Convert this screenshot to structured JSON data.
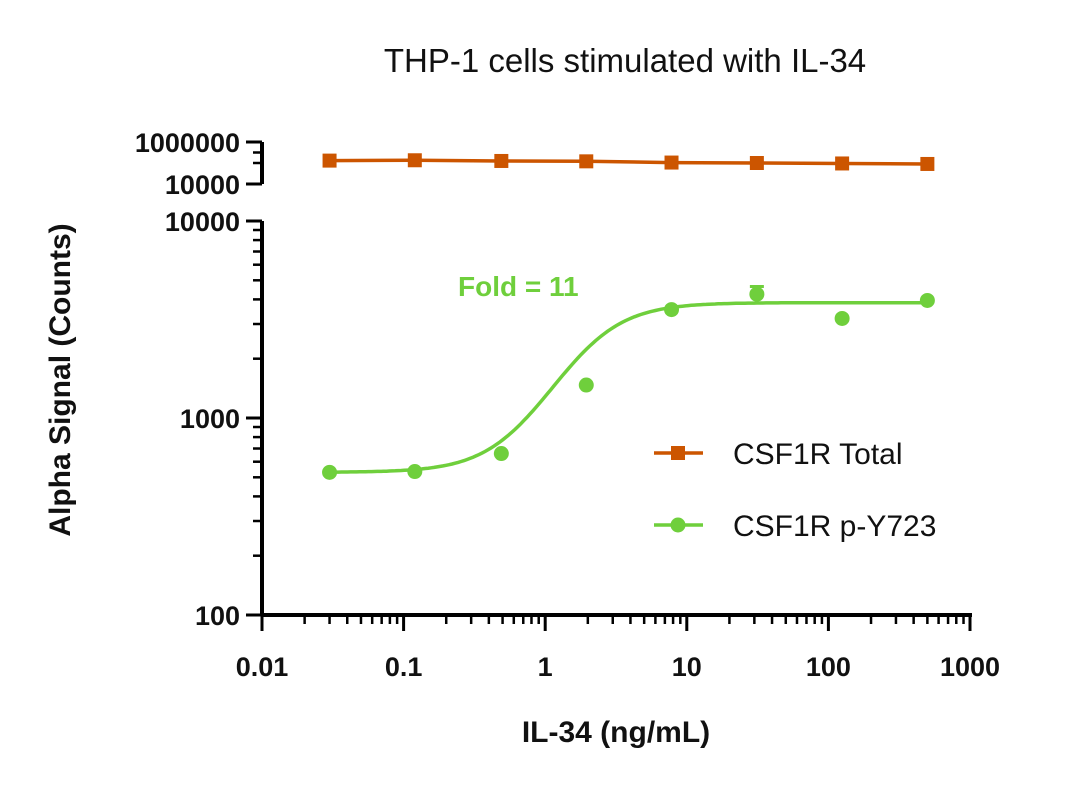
{
  "chart_data": {
    "type": "scatter",
    "title": "THP-1 cells stimulated with IL-34",
    "xlabel": "IL-34 (ng/mL)",
    "ylabel": "Alpha Signal (Counts)",
    "x_scale": "log",
    "y_scale": "log",
    "xlim": [
      0.01,
      1000
    ],
    "x_ticks": [
      "0.01",
      "0.1",
      "1",
      "10",
      "100",
      "1000"
    ],
    "y_axis_segments": [
      {
        "range": [
          10000,
          1000000
        ],
        "tick_labels": [
          "1000000",
          "10000"
        ]
      },
      {
        "range": [
          100,
          10000
        ],
        "tick_labels": [
          "10000",
          "1000",
          "100"
        ]
      }
    ],
    "series": [
      {
        "name": "CSF1R Total",
        "color": "#cc5500",
        "marker": "square",
        "x": [
          0.03,
          0.12,
          0.49,
          1.95,
          7.8,
          31.25,
          125,
          500
        ],
        "y": [
          130000,
          135000,
          125000,
          120000,
          105000,
          100000,
          95000,
          90000
        ]
      },
      {
        "name": "CSF1R p-Y723",
        "color": "#6fcf3c",
        "marker": "circle",
        "x": [
          0.03,
          0.12,
          0.49,
          1.95,
          7.8,
          31.25,
          125,
          500
        ],
        "y": [
          530,
          535,
          660,
          1470,
          3550,
          4250,
          3200,
          3950
        ],
        "errors": [
          0,
          0,
          0,
          0,
          0,
          400,
          0,
          0
        ],
        "fit": {
          "bottom": 530,
          "top": 3850,
          "ec50": 1.9,
          "hill": 1.9
        }
      }
    ],
    "annotations": [
      {
        "text": "Fold = 11",
        "color": "#6fcf3c"
      }
    ],
    "legend_position": "right-middle",
    "grid": false
  }
}
